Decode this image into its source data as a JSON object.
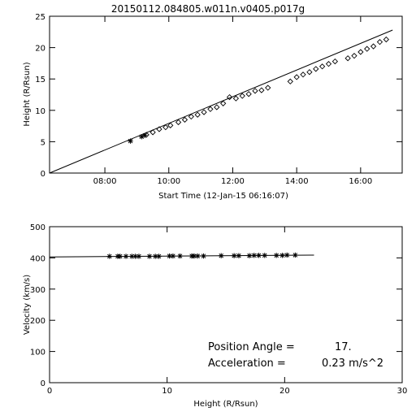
{
  "title": "20150112.084805.w011n.v0405.p017g",
  "chart_data": [
    {
      "type": "scatter",
      "xlabel": "Start Time (12-Jan-15 06:16:07)",
      "ylabel": "Height (R/Rsun)",
      "xlim": [
        6.27,
        17.3
      ],
      "ylim": [
        0,
        25
      ],
      "xticks": [
        {
          "v": 8,
          "label": "08:00"
        },
        {
          "v": 10,
          "label": "10:00"
        },
        {
          "v": 12,
          "label": "12:00"
        },
        {
          "v": 14,
          "label": "14:00"
        },
        {
          "v": 16,
          "label": "16:00"
        }
      ],
      "yticks": [
        0,
        5,
        10,
        15,
        20,
        25
      ],
      "fit_line": {
        "x": [
          6.27,
          17.0
        ],
        "y": [
          0,
          22.8
        ]
      },
      "star_points": [
        {
          "x": 8.8,
          "y": 5.1
        },
        {
          "x": 9.15,
          "y": 5.8
        },
        {
          "x": 9.25,
          "y": 6.0
        }
      ],
      "diamond_points": [
        {
          "x": 9.3,
          "y": 6.1
        },
        {
          "x": 9.5,
          "y": 6.5
        },
        {
          "x": 9.7,
          "y": 7.0
        },
        {
          "x": 9.9,
          "y": 7.3
        },
        {
          "x": 10.05,
          "y": 7.6
        },
        {
          "x": 10.3,
          "y": 8.1
        },
        {
          "x": 10.5,
          "y": 8.5
        },
        {
          "x": 10.7,
          "y": 9.0
        },
        {
          "x": 10.9,
          "y": 9.3
        },
        {
          "x": 11.1,
          "y": 9.7
        },
        {
          "x": 11.3,
          "y": 10.2
        },
        {
          "x": 11.5,
          "y": 10.5
        },
        {
          "x": 11.7,
          "y": 11.1
        },
        {
          "x": 11.9,
          "y": 12.1
        },
        {
          "x": 12.1,
          "y": 11.9
        },
        {
          "x": 12.3,
          "y": 12.3
        },
        {
          "x": 12.5,
          "y": 12.6
        },
        {
          "x": 12.7,
          "y": 13.1
        },
        {
          "x": 12.9,
          "y": 13.2
        },
        {
          "x": 13.1,
          "y": 13.6
        },
        {
          "x": 13.8,
          "y": 14.6
        },
        {
          "x": 14.0,
          "y": 15.3
        },
        {
          "x": 14.2,
          "y": 15.7
        },
        {
          "x": 14.4,
          "y": 16.1
        },
        {
          "x": 14.6,
          "y": 16.6
        },
        {
          "x": 14.8,
          "y": 17.0
        },
        {
          "x": 15.0,
          "y": 17.4
        },
        {
          "x": 15.2,
          "y": 17.8
        },
        {
          "x": 15.6,
          "y": 18.3
        },
        {
          "x": 15.8,
          "y": 18.7
        },
        {
          "x": 16.0,
          "y": 19.3
        },
        {
          "x": 16.2,
          "y": 19.8
        },
        {
          "x": 16.4,
          "y": 20.2
        },
        {
          "x": 16.6,
          "y": 20.9
        },
        {
          "x": 16.8,
          "y": 21.3
        }
      ]
    },
    {
      "type": "scatter",
      "xlabel": "Height (R/Rsun)",
      "ylabel": "Velocity (km/s)",
      "xlim": [
        0,
        30
      ],
      "ylim": [
        0,
        500
      ],
      "xticks": [
        0,
        10,
        20,
        30
      ],
      "yticks": [
        0,
        100,
        200,
        300,
        400,
        500
      ],
      "fit_line": {
        "x": [
          0,
          22.5
        ],
        "y": [
          403,
          409
        ]
      },
      "star_points": [
        {
          "x": 5.1,
          "y": 405
        },
        {
          "x": 5.8,
          "y": 405
        },
        {
          "x": 6.0,
          "y": 405
        },
        {
          "x": 6.5,
          "y": 405
        },
        {
          "x": 7.0,
          "y": 405
        },
        {
          "x": 7.3,
          "y": 405
        },
        {
          "x": 7.6,
          "y": 405
        },
        {
          "x": 8.5,
          "y": 405
        },
        {
          "x": 9.0,
          "y": 405
        },
        {
          "x": 9.3,
          "y": 405
        },
        {
          "x": 10.2,
          "y": 406
        },
        {
          "x": 10.5,
          "y": 406
        },
        {
          "x": 11.1,
          "y": 406
        },
        {
          "x": 12.1,
          "y": 406
        },
        {
          "x": 12.3,
          "y": 406
        },
        {
          "x": 12.6,
          "y": 406
        },
        {
          "x": 13.1,
          "y": 406
        },
        {
          "x": 14.6,
          "y": 407
        },
        {
          "x": 15.7,
          "y": 407
        },
        {
          "x": 16.1,
          "y": 407
        },
        {
          "x": 17.0,
          "y": 407
        },
        {
          "x": 17.4,
          "y": 408
        },
        {
          "x": 17.8,
          "y": 408
        },
        {
          "x": 18.3,
          "y": 408
        },
        {
          "x": 19.3,
          "y": 408
        },
        {
          "x": 19.8,
          "y": 408
        },
        {
          "x": 20.2,
          "y": 409
        },
        {
          "x": 20.9,
          "y": 409
        }
      ],
      "annotations": [
        {
          "label": "Position Angle =",
          "value": "17."
        },
        {
          "label": "Acceleration =",
          "value": "0.23 m/s^2"
        }
      ]
    }
  ]
}
